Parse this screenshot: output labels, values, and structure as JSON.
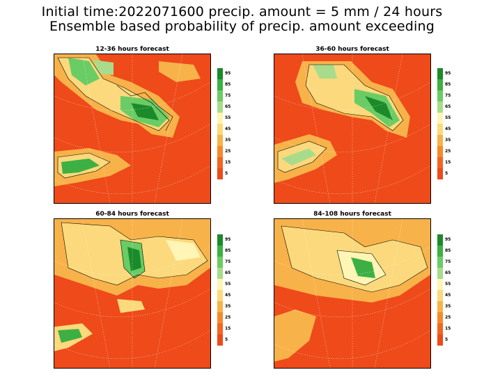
{
  "title_line1": "Initial time:2022071600 precip. amount =  5 mm / 24 hours",
  "title_line2": "Ensemble based probability of precip. amount exceeding",
  "panels": [
    {
      "label": "12-36 hours forecast"
    },
    {
      "label": "36-60 hours forecast"
    },
    {
      "label": "60-84 hours forecast"
    },
    {
      "label": "84-108 hours forecast"
    }
  ],
  "colorbar": {
    "labels": [
      "95",
      "85",
      "75",
      "65",
      "55",
      "45",
      "35",
      "25",
      "15",
      "5"
    ],
    "colors": [
      "#1a8a2a",
      "#3cb043",
      "#6acc64",
      "#a8dc8c",
      "#fff5b4",
      "#fbd97c",
      "#f8b24a",
      "#f58a2c",
      "#f26522",
      "#ee4a1a"
    ]
  },
  "colors": {
    "base": "#ee4a1a",
    "low": "#f58a2c",
    "mid": "#f8b24a",
    "light": "#fbd97c",
    "pale": "#fff5b4",
    "green1": "#a8dc8c",
    "green2": "#3cb043",
    "green3": "#1a8a2a"
  }
}
